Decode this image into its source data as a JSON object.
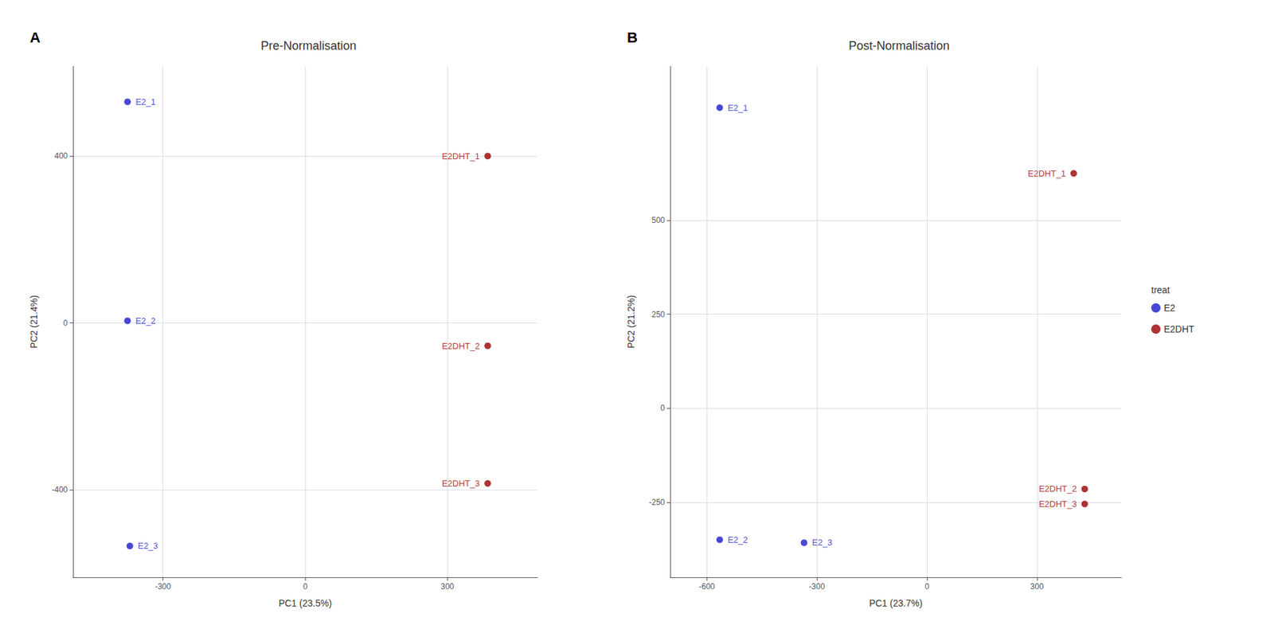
{
  "chart_data": [
    {
      "type": "scatter",
      "panel_label": "A",
      "title": "Pre-Normalisation",
      "xlabel": "PC1 (23.5%)",
      "ylabel": "PC2 (21.4%)",
      "series": [
        {
          "name": "E2",
          "color": "#1a1acd",
          "x": [
            -375,
            -375,
            -370
          ],
          "y": [
            530,
            5,
            -535
          ],
          "point_labels": [
            "E2_1",
            "E2_2",
            "E2_3"
          ]
        },
        {
          "name": "E2DHT",
          "color": "#9b0000",
          "x": [
            385,
            385,
            385
          ],
          "y": [
            400,
            -55,
            -385
          ],
          "point_labels": [
            "E2DHT_1",
            "E2DHT_2",
            "E2DHT_3"
          ]
        }
      ],
      "xlim": [
        -490,
        490
      ],
      "ylim": [
        -610,
        615
      ],
      "xticks": [
        -300,
        0,
        300
      ],
      "yticks": [
        -400,
        0,
        400
      ],
      "grid": true,
      "legend": false
    },
    {
      "type": "scatter",
      "panel_label": "B",
      "title": "Post-Normalisation",
      "xlabel": "PC1 (23.7%)",
      "ylabel": "PC2 (21.2%)",
      "series": [
        {
          "name": "E2",
          "color": "#1a1acd",
          "x": [
            -565,
            -565,
            -335
          ],
          "y": [
            800,
            -350,
            -358
          ],
          "point_labels": [
            "E2_1",
            "E2_2",
            "E2_3"
          ]
        },
        {
          "name": "E2DHT",
          "color": "#9b0000",
          "x": [
            400,
            430,
            430
          ],
          "y": [
            625,
            -215,
            -255
          ],
          "point_labels": [
            "E2DHT_1",
            "E2DHT_2",
            "E2DHT_3"
          ]
        }
      ],
      "xlim": [
        -700,
        530
      ],
      "ylim": [
        -450,
        910
      ],
      "xticks": [
        -600,
        -300,
        0,
        300
      ],
      "yticks": [
        -250,
        0,
        250,
        500
      ],
      "grid": true,
      "legend": "right",
      "legend_title": "treat"
    }
  ]
}
